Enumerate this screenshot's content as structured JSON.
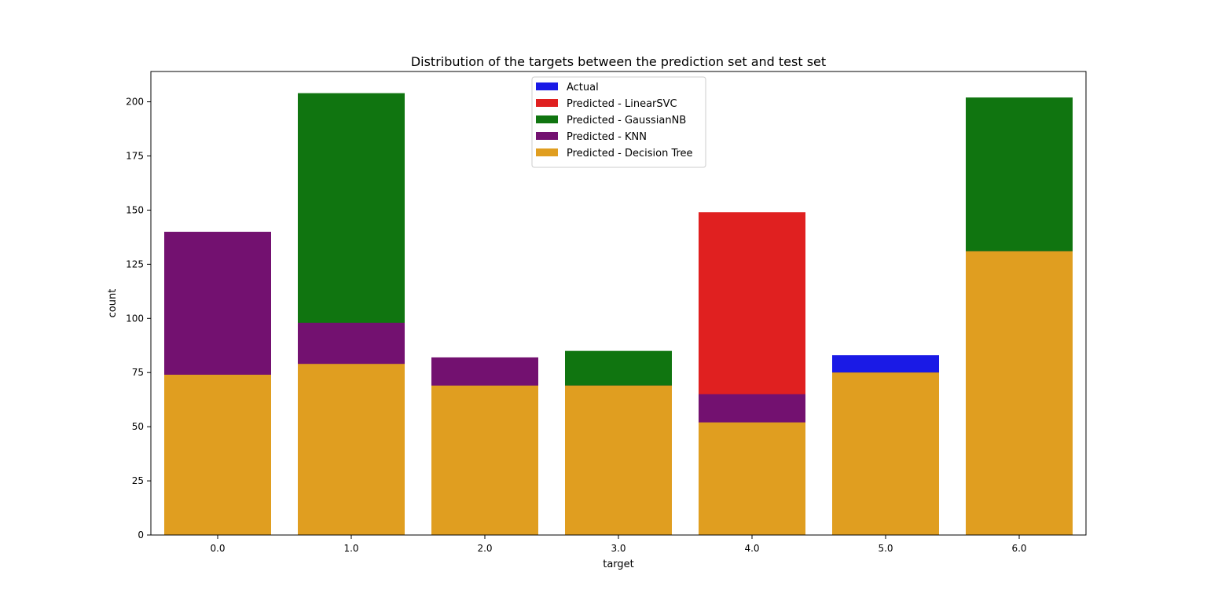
{
  "chart_data": {
    "type": "bar",
    "title": "Distribution of the targets between the prediction set and test set",
    "xlabel": "target",
    "ylabel": "count",
    "categories": [
      "0.0",
      "1.0",
      "2.0",
      "3.0",
      "4.0",
      "5.0",
      "6.0"
    ],
    "ylim": [
      0,
      214
    ],
    "yticks": [
      0,
      25,
      50,
      75,
      100,
      125,
      150,
      175,
      200
    ],
    "grid": false,
    "legend_position": "top-center",
    "overlaid": true,
    "series": [
      {
        "name": "Actual",
        "color": "#1a1ae6",
        "values": [
          74,
          79,
          69,
          69,
          52,
          83,
          131
        ]
      },
      {
        "name": "Predicted - LinearSVC",
        "color": "#e02020",
        "values": [
          74,
          79,
          69,
          69,
          149,
          75,
          131
        ]
      },
      {
        "name": "Predicted - GaussianNB",
        "color": "#107510",
        "values": [
          74,
          204,
          69,
          85,
          52,
          75,
          202
        ]
      },
      {
        "name": "Predicted - KNN",
        "color": "#731170",
        "values": [
          140,
          98,
          82,
          69,
          65,
          75,
          131
        ]
      },
      {
        "name": "Predicted - Decision Tree",
        "color": "#e09e20",
        "values": [
          74,
          79,
          69,
          69,
          52,
          75,
          131
        ]
      }
    ]
  }
}
